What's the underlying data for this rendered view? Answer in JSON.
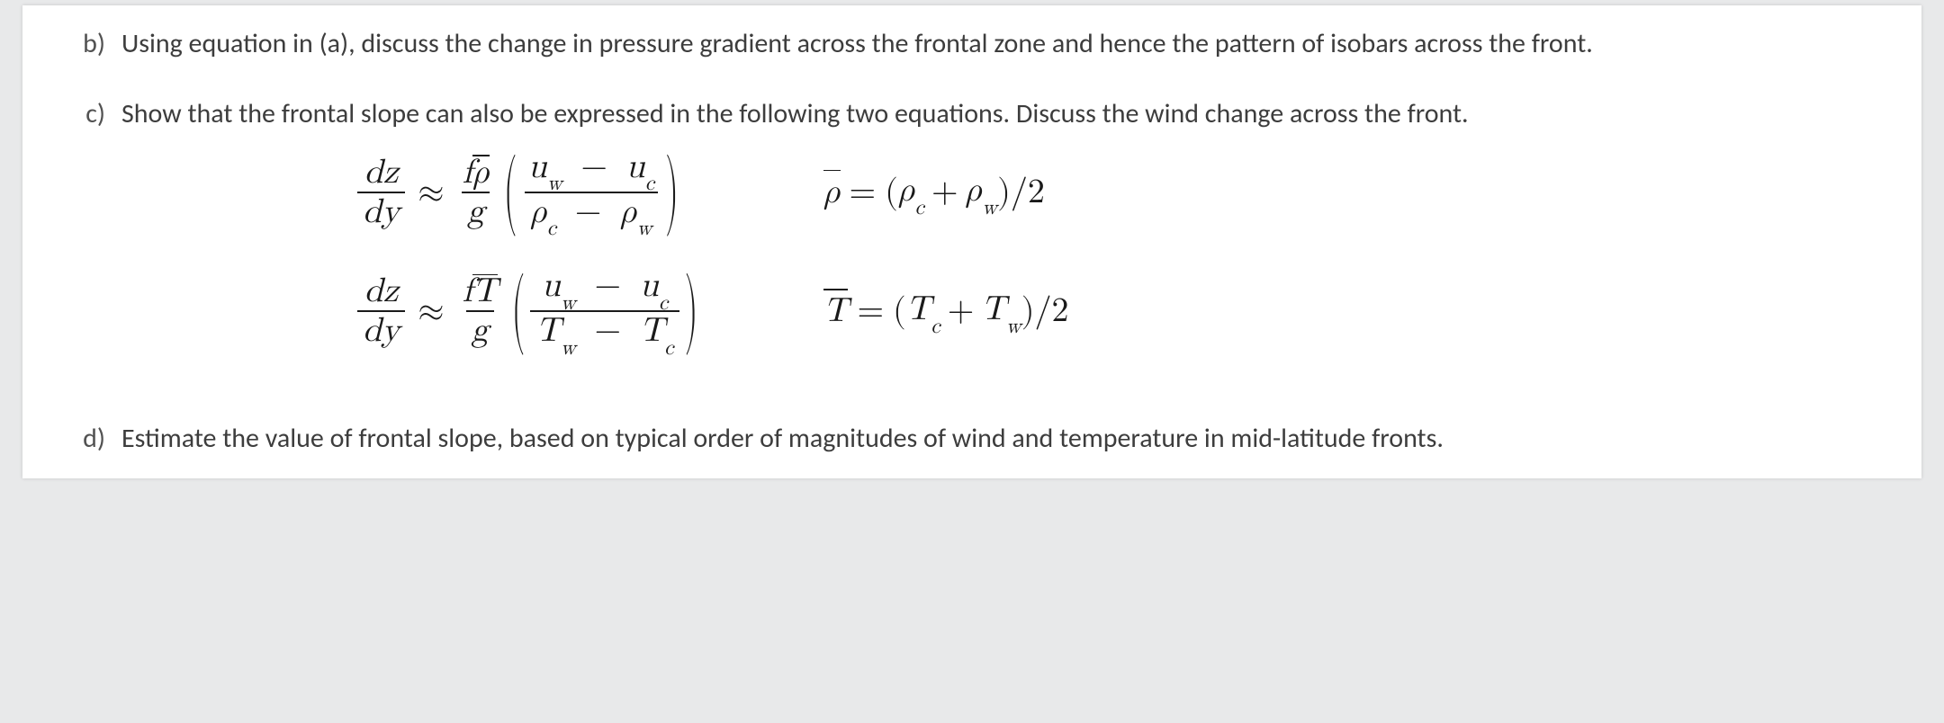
{
  "page": {
    "background_color": "#e8e9ea",
    "paper_color": "#ffffff",
    "text_color": "#3d3d3d",
    "marker_color": "#525252",
    "math_color": "#1a1a1a",
    "body_fontsize_pt": 22,
    "math_fontsize_pt": 28,
    "font_family_body": "Gill Sans / humanist sans-serif",
    "font_family_math": "Latin Modern / Computer Modern (TeX)"
  },
  "items": {
    "b": {
      "marker": "b)",
      "text": "Using equation in (a), discuss the change in pressure gradient across the frontal zone and hence the pattern of isobars across the front."
    },
    "c": {
      "marker": "c)",
      "text": "Show that the frontal slope can also be expressed in the following two equations.  Discuss the wind change across the front.",
      "equations": {
        "row1": {
          "lhs": "dz/dy",
          "rhs_coeff_num": "f ρ̄",
          "rhs_coeff_den": "g",
          "rhs_paren_num": "u_w − u_c",
          "rhs_paren_den": "ρ_c − ρ_w",
          "relation": "≈",
          "definition": "ρ̄ = (ρ_c + ρ_w)/2"
        },
        "row2": {
          "lhs": "dz/dy",
          "rhs_coeff_num": "f T̄",
          "rhs_coeff_den": "g",
          "rhs_paren_num": "u_w − u_c",
          "rhs_paren_den": "T_w − T_c",
          "relation": "≈",
          "definition": "T̄ = (T_c + T_w)/2"
        }
      }
    },
    "d": {
      "marker": "d)",
      "text": "Estimate the value of frontal slope, based on typical order of magnitudes of wind and temperature in mid-latitude fronts."
    }
  },
  "symbols": {
    "dz": "dz",
    "dy": "dy",
    "f": "f",
    "g": "g",
    "rho_bar": "ρ",
    "T_bar": "T",
    "u": "u",
    "rho": "ρ",
    "T": "T",
    "sub_w": "w",
    "sub_c": "c",
    "approx": "≈",
    "equals": "=",
    "minus": "−",
    "plus": "+",
    "over2": "/2",
    "lparen": "(",
    "rparen": ")"
  }
}
